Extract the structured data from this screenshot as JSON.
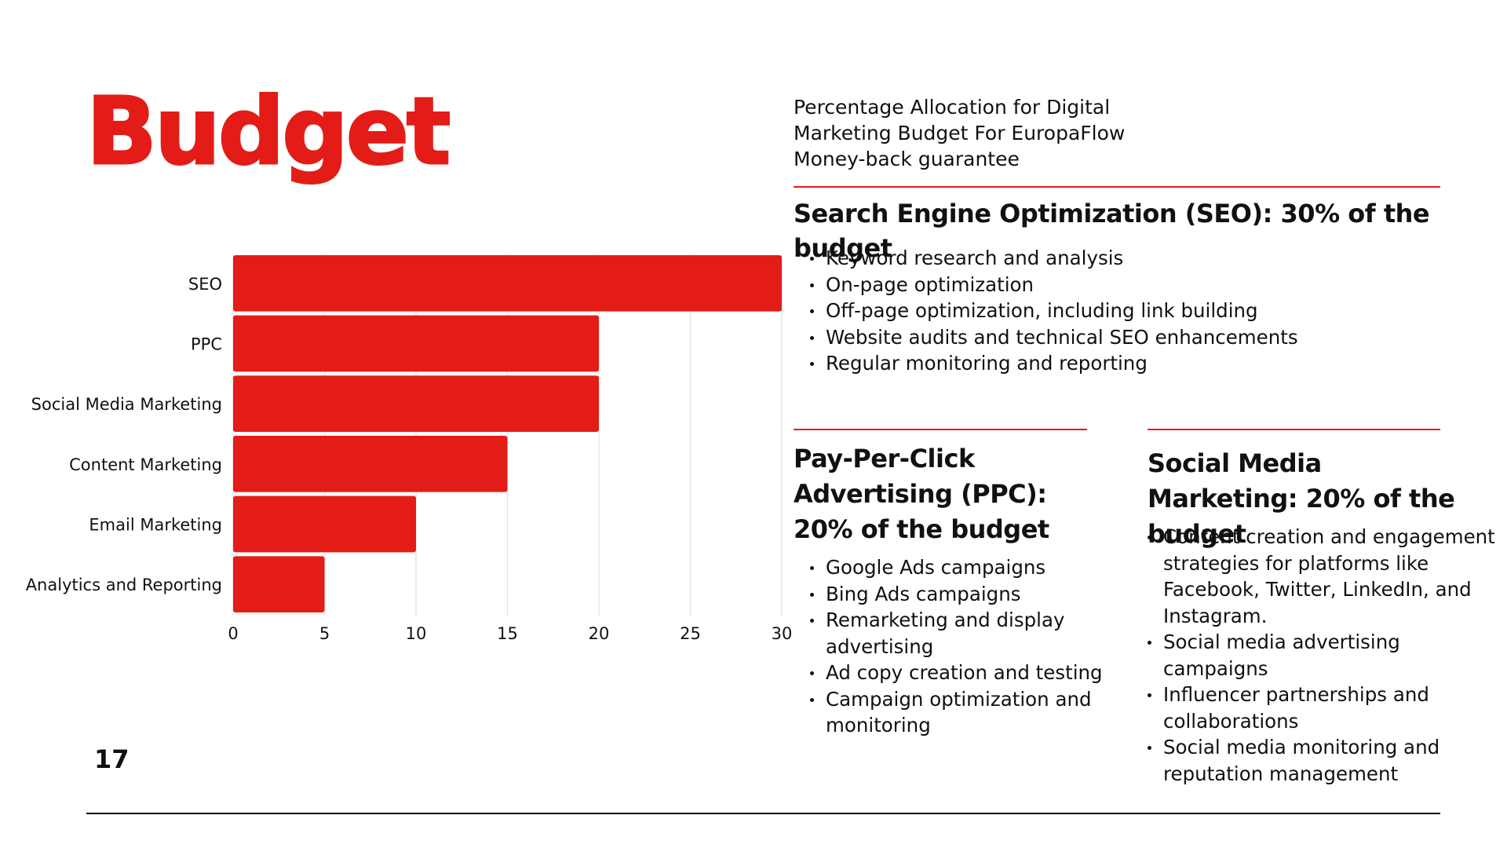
{
  "slide": {
    "title": "Budget",
    "page_number": "17",
    "accent_color": "#e31c17"
  },
  "intro": {
    "text": "Percentage Allocation for Digital Marketing Budget For EuropaFlow Money-back guarantee"
  },
  "seo": {
    "heading": "Search Engine Optimization (SEO): 30% of the budget",
    "items": [
      "Keyword research and analysis",
      "On-page optimization",
      "Off-page optimization, including link building",
      "Website audits and technical SEO enhancements",
      "Regular monitoring and reporting"
    ]
  },
  "ppc": {
    "heading": "Pay-Per-Click Advertising (PPC): 20% of the budget",
    "items": [
      "Google Ads campaigns",
      "Bing Ads campaigns",
      "Remarketing and display advertising",
      "Ad copy creation and testing",
      "Campaign optimization and monitoring"
    ]
  },
  "smm": {
    "heading": "Social Media Marketing: 20% of the budget",
    "items": [
      "Content creation and engagement strategies for platforms like Facebook, Twitter, LinkedIn, and Instagram.",
      "Social media advertising campaigns",
      "Influencer partnerships and collaborations",
      "Social media monitoring and reputation management"
    ]
  },
  "chart_data": {
    "type": "bar",
    "orientation": "horizontal",
    "categories": [
      "SEO",
      "PPC",
      "Social Media Marketing",
      "Content Marketing",
      "Email Marketing",
      "Analytics and Reporting"
    ],
    "values": [
      30,
      20,
      20,
      15,
      10,
      5
    ],
    "xlim": [
      0,
      30
    ],
    "xticks": [
      0,
      5,
      10,
      15,
      20,
      25,
      30
    ],
    "grid": true,
    "bar_color": "#e31c17",
    "grid_color": "#e6e6e6"
  }
}
